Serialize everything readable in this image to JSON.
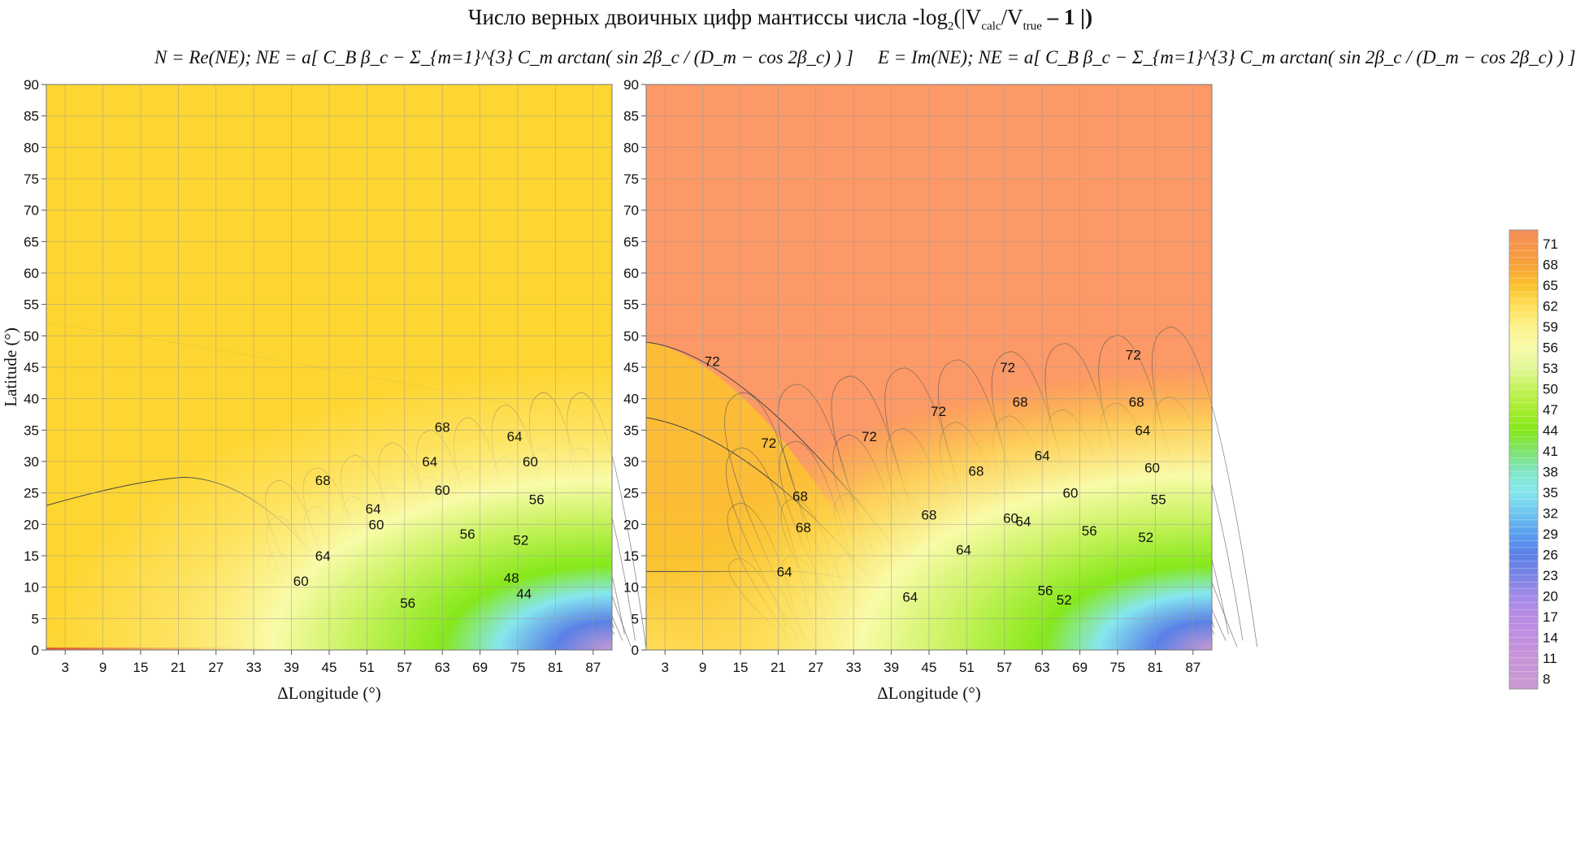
{
  "title_parts": {
    "prefix": "Число верных двоичных цифр мантиссы числа -log",
    "sub2": "2",
    "mid": "(|V",
    "sub_calc": "calc",
    "slash": "/V",
    "sub_true": "true",
    "suffix": " – 1 |)"
  },
  "formulas": {
    "left": "N = Re(NE);   NE = a[ C_B β_c − Σ_{m=1}^{3} C_m arctan( sin 2β_c / (D_m − cos 2β_c) ) ]",
    "right": "E = Im(NE);   NE = a[ C_B β_c − Σ_{m=1}^{3} C_m arctan( sin 2β_c / (D_m − cos 2β_c) ) ]"
  },
  "colors": {
    "left_background": "#fed631",
    "right_background": "#fc9966",
    "colorbar_top": "#f58c5a",
    "colorbar_bottom": "#c896d6"
  },
  "chart_data": [
    {
      "type": "heatmap",
      "panel": "left",
      "xlabel": "ΔLongitude  (°)",
      "ylabel": "Latitude  (°)",
      "xlim": [
        0,
        90
      ],
      "ylim": [
        0,
        90
      ],
      "xticks": [
        3,
        9,
        15,
        21,
        27,
        33,
        39,
        45,
        51,
        57,
        63,
        69,
        75,
        81,
        87
      ],
      "yticks": [
        0,
        5,
        10,
        15,
        20,
        25,
        30,
        35,
        40,
        45,
        50,
        55,
        60,
        65,
        70,
        75,
        80,
        85,
        90
      ],
      "grid": true,
      "contour_labels": [
        {
          "value": "68",
          "x": 44,
          "y": 27
        },
        {
          "value": "68",
          "x": 63,
          "y": 35.5
        },
        {
          "value": "64",
          "x": 74.5,
          "y": 34
        },
        {
          "value": "64",
          "x": 61,
          "y": 30
        },
        {
          "value": "60",
          "x": 77,
          "y": 30
        },
        {
          "value": "60",
          "x": 63,
          "y": 25.5
        },
        {
          "value": "56",
          "x": 78,
          "y": 24
        },
        {
          "value": "64",
          "x": 52,
          "y": 22.5
        },
        {
          "value": "60",
          "x": 52.5,
          "y": 20
        },
        {
          "value": "56",
          "x": 67,
          "y": 18.5
        },
        {
          "value": "52",
          "x": 75.5,
          "y": 17.5
        },
        {
          "value": "64",
          "x": 44,
          "y": 15
        },
        {
          "value": "60",
          "x": 40.5,
          "y": 11
        },
        {
          "value": "48",
          "x": 74,
          "y": 11.5
        },
        {
          "value": "44",
          "x": 76,
          "y": 9
        },
        {
          "value": "56",
          "x": 57.5,
          "y": 7.5
        }
      ]
    },
    {
      "type": "heatmap",
      "panel": "right",
      "xlabel": "ΔLongitude  (°)",
      "ylabel": "",
      "xlim": [
        0,
        90
      ],
      "ylim": [
        0,
        90
      ],
      "xticks": [
        3,
        9,
        15,
        21,
        27,
        33,
        39,
        45,
        51,
        57,
        63,
        69,
        75,
        81,
        87
      ],
      "yticks": [
        0,
        5,
        10,
        15,
        20,
        25,
        30,
        35,
        40,
        45,
        50,
        55,
        60,
        65,
        70,
        75,
        80,
        85,
        90
      ],
      "grid": true,
      "contour_labels": [
        {
          "value": "72",
          "x": 10.5,
          "y": 46
        },
        {
          "value": "72",
          "x": 19.5,
          "y": 33
        },
        {
          "value": "72",
          "x": 35.5,
          "y": 34
        },
        {
          "value": "72",
          "x": 46.5,
          "y": 38
        },
        {
          "value": "72",
          "x": 57.5,
          "y": 45
        },
        {
          "value": "72",
          "x": 77.5,
          "y": 47
        },
        {
          "value": "68",
          "x": 59.5,
          "y": 39.5
        },
        {
          "value": "68",
          "x": 78,
          "y": 39.5
        },
        {
          "value": "64",
          "x": 79,
          "y": 35
        },
        {
          "value": "64",
          "x": 63,
          "y": 31
        },
        {
          "value": "60",
          "x": 80.5,
          "y": 29
        },
        {
          "value": "68",
          "x": 52.5,
          "y": 28.5
        },
        {
          "value": "60",
          "x": 67.5,
          "y": 25
        },
        {
          "value": "68",
          "x": 24.5,
          "y": 24.5
        },
        {
          "value": "55",
          "x": 81.5,
          "y": 24
        },
        {
          "value": "68",
          "x": 45,
          "y": 21.5
        },
        {
          "value": "60",
          "x": 58,
          "y": 21
        },
        {
          "value": "64",
          "x": 60,
          "y": 20.5
        },
        {
          "value": "56",
          "x": 70.5,
          "y": 19
        },
        {
          "value": "68",
          "x": 25,
          "y": 19.5
        },
        {
          "value": "52",
          "x": 79.5,
          "y": 18
        },
        {
          "value": "64",
          "x": 50.5,
          "y": 16
        },
        {
          "value": "64",
          "x": 22,
          "y": 12.5
        },
        {
          "value": "56",
          "x": 63.5,
          "y": 9.5
        },
        {
          "value": "52",
          "x": 66.5,
          "y": 8
        },
        {
          "value": "64",
          "x": 42,
          "y": 8.5
        }
      ]
    },
    {
      "type": "colorbar",
      "levels": [
        71,
        68,
        65,
        62,
        59,
        56,
        53,
        50,
        47,
        44,
        41,
        38,
        35,
        32,
        29,
        26,
        23,
        20,
        17,
        14,
        11,
        8
      ],
      "range": [
        6.5,
        73
      ],
      "stops": [
        {
          "v": 73,
          "color": "#f58c5a"
        },
        {
          "v": 68,
          "color": "#f6a13a"
        },
        {
          "v": 65,
          "color": "#fbc22e"
        },
        {
          "v": 62,
          "color": "#fede58"
        },
        {
          "v": 59,
          "color": "#fdf38a"
        },
        {
          "v": 56,
          "color": "#f9fba8"
        },
        {
          "v": 53,
          "color": "#e1f798"
        },
        {
          "v": 50,
          "color": "#c4f25a"
        },
        {
          "v": 47,
          "color": "#a6ec2e"
        },
        {
          "v": 44,
          "color": "#86e81a"
        },
        {
          "v": 41,
          "color": "#7ee26a"
        },
        {
          "v": 38,
          "color": "#7fe7c6"
        },
        {
          "v": 35,
          "color": "#86e7ee"
        },
        {
          "v": 32,
          "color": "#6fc6ef"
        },
        {
          "v": 29,
          "color": "#5b9ff0"
        },
        {
          "v": 26,
          "color": "#5a80e6"
        },
        {
          "v": 23,
          "color": "#7a84e6"
        },
        {
          "v": 20,
          "color": "#a18ae8"
        },
        {
          "v": 17,
          "color": "#b98de6"
        },
        {
          "v": 14,
          "color": "#c18fe0"
        },
        {
          "v": 11,
          "color": "#c895d8"
        },
        {
          "v": 6.5,
          "color": "#c899d2"
        }
      ]
    }
  ]
}
